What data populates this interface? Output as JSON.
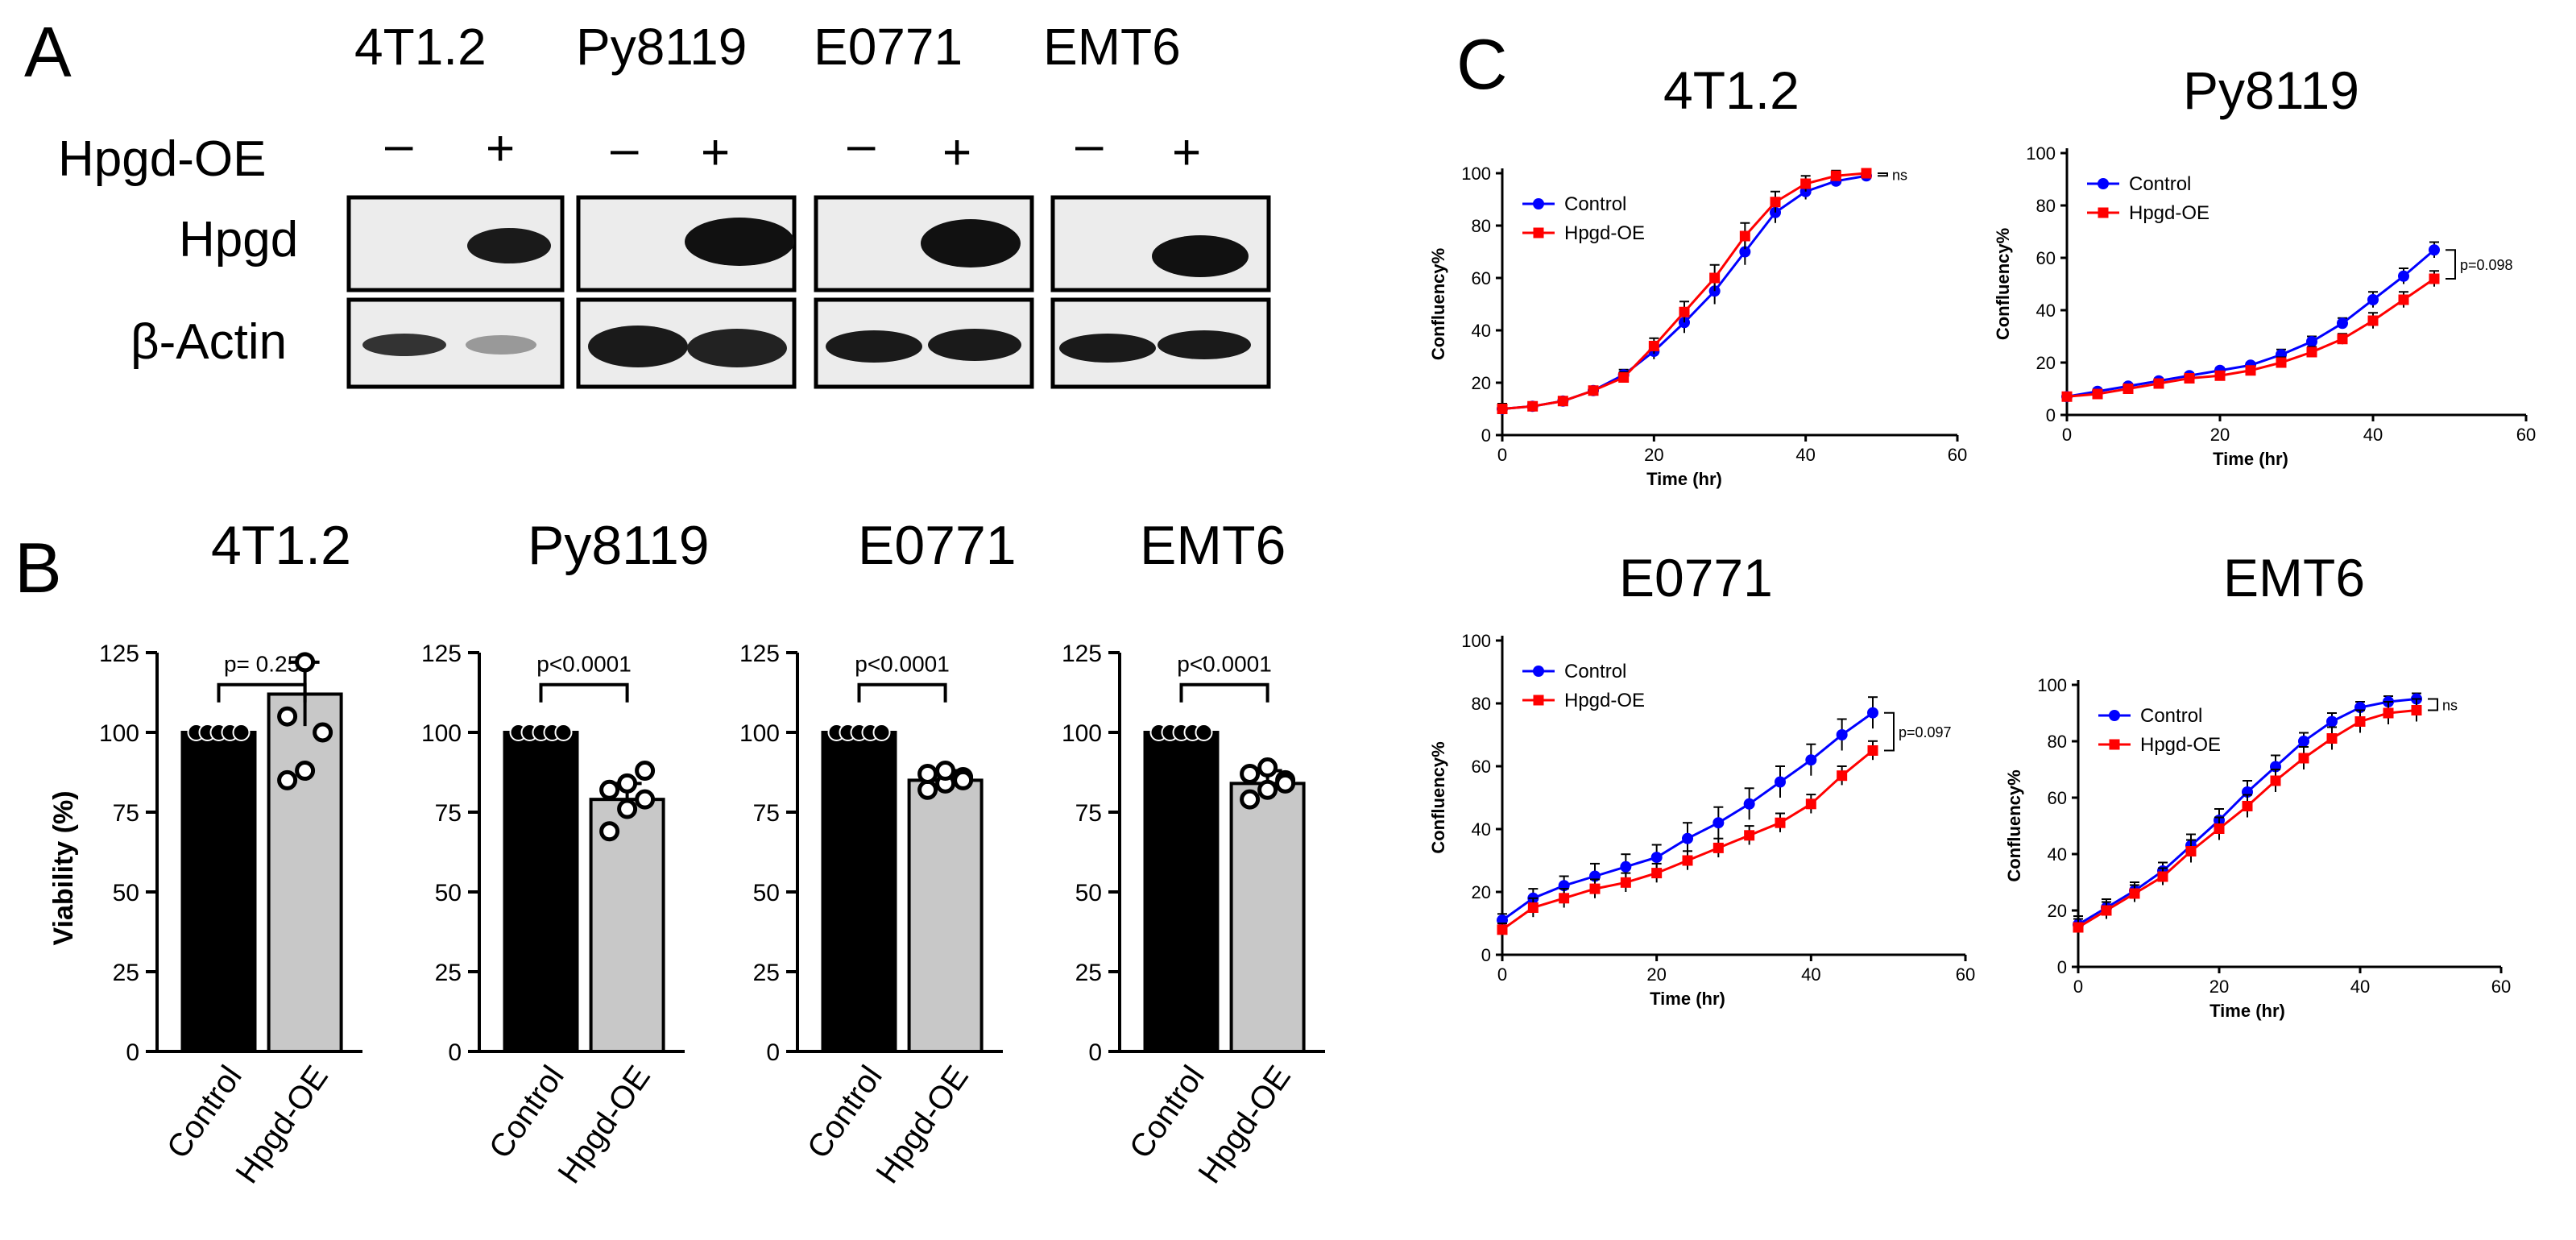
{
  "panels": {
    "A": {
      "letter": "A",
      "cell_lines": [
        "4T1.2",
        "Py8119",
        "E0771",
        "EMT6"
      ],
      "condition_label": "Hpgd-OE",
      "signs": [
        "–",
        "+"
      ],
      "rows": [
        "Hpgd",
        "β-Actin"
      ]
    },
    "B": {
      "letter": "B"
    },
    "C": {
      "letter": "C"
    }
  },
  "chart_data": [
    {
      "panel": "B",
      "type": "bar",
      "title": "4T1.2",
      "categories": [
        "Control",
        "Hpgd-OE"
      ],
      "values": [
        100,
        112
      ],
      "errors": [
        0,
        10
      ],
      "points": [
        [
          100,
          100,
          100,
          100,
          100
        ],
        [
          85,
          88,
          100,
          105,
          122
        ]
      ],
      "ylabel": "Viability (%)",
      "ylim": [
        0,
        125
      ],
      "yticks": [
        0,
        25,
        50,
        75,
        100,
        125
      ],
      "pvalue": "p= 0.25",
      "colors": [
        "#000000",
        "#c8c8c8"
      ]
    },
    {
      "panel": "B",
      "type": "bar",
      "title": "Py8119",
      "categories": [
        "Control",
        "Hpgd-OE"
      ],
      "values": [
        100,
        79
      ],
      "errors": [
        0,
        5
      ],
      "points": [
        [
          100,
          100,
          100,
          100,
          100
        ],
        [
          69,
          76,
          79,
          82,
          84,
          88
        ]
      ],
      "ylabel": "",
      "ylim": [
        0,
        125
      ],
      "yticks": [
        0,
        25,
        50,
        75,
        100,
        125
      ],
      "pvalue": "p<0.0001",
      "colors": [
        "#000000",
        "#c8c8c8"
      ]
    },
    {
      "panel": "B",
      "type": "bar",
      "title": "E0771",
      "categories": [
        "Control",
        "Hpgd-OE"
      ],
      "values": [
        100,
        85
      ],
      "errors": [
        0,
        3
      ],
      "points": [
        [
          100,
          100,
          100,
          100,
          100
        ],
        [
          82,
          84,
          86,
          87,
          88,
          85
        ]
      ],
      "ylabel": "",
      "ylim": [
        0,
        125
      ],
      "yticks": [
        0,
        25,
        50,
        75,
        100,
        125
      ],
      "pvalue": "p<0.0001",
      "colors": [
        "#000000",
        "#c8c8c8"
      ]
    },
    {
      "panel": "B",
      "type": "bar",
      "title": "EMT6",
      "categories": [
        "Control",
        "Hpgd-OE"
      ],
      "values": [
        100,
        84
      ],
      "errors": [
        0,
        4
      ],
      "points": [
        [
          100,
          100,
          100,
          100,
          100
        ],
        [
          79,
          82,
          85,
          87,
          89,
          84
        ]
      ],
      "ylabel": "",
      "ylim": [
        0,
        125
      ],
      "yticks": [
        0,
        25,
        50,
        75,
        100,
        125
      ],
      "pvalue": "p<0.0001",
      "colors": [
        "#000000",
        "#c8c8c8"
      ]
    },
    {
      "panel": "C",
      "type": "line",
      "title": "4T1.2",
      "x": [
        0,
        4,
        8,
        12,
        16,
        20,
        24,
        28,
        32,
        36,
        40,
        44,
        48
      ],
      "series": [
        {
          "name": "Control",
          "color": "#0000ff",
          "values": [
            10,
            11,
            13,
            17,
            23,
            32,
            43,
            55,
            70,
            85,
            93,
            97,
            99
          ],
          "errors": [
            2,
            1,
            1,
            1,
            2,
            3,
            4,
            5,
            5,
            4,
            3,
            2,
            1
          ]
        },
        {
          "name": "Hpgd-OE",
          "color": "#ff0000",
          "values": [
            10,
            11,
            13,
            17,
            22,
            34,
            47,
            60,
            76,
            89,
            96,
            99,
            100
          ],
          "errors": [
            2,
            1,
            1,
            1,
            2,
            3,
            4,
            5,
            5,
            4,
            3,
            2,
            1
          ]
        }
      ],
      "xlabel": "Time (hr)",
      "ylabel": "Confluency%",
      "xlim": [
        0,
        60
      ],
      "ylim": [
        0,
        100
      ],
      "xticks": [
        0,
        20,
        40,
        60
      ],
      "yticks": [
        0,
        20,
        40,
        60,
        80,
        100
      ],
      "annotation": "ns"
    },
    {
      "panel": "C",
      "type": "line",
      "title": "Py8119",
      "x": [
        0,
        4,
        8,
        12,
        16,
        20,
        24,
        28,
        32,
        36,
        40,
        44,
        48
      ],
      "series": [
        {
          "name": "Control",
          "color": "#0000ff",
          "values": [
            7,
            9,
            11,
            13,
            15,
            17,
            19,
            23,
            28,
            35,
            44,
            53,
            63
          ],
          "errors": [
            1,
            1,
            1,
            1,
            1,
            1,
            1,
            2,
            2,
            2,
            3,
            3,
            3
          ]
        },
        {
          "name": "Hpgd-OE",
          "color": "#ff0000",
          "values": [
            7,
            8,
            10,
            12,
            14,
            15,
            17,
            20,
            24,
            29,
            36,
            44,
            52
          ],
          "errors": [
            1,
            1,
            1,
            1,
            1,
            1,
            1,
            2,
            2,
            2,
            3,
            3,
            3
          ]
        }
      ],
      "xlabel": "Time (hr)",
      "ylabel": "Confluency%",
      "xlim": [
        0,
        60
      ],
      "ylim": [
        0,
        100
      ],
      "xticks": [
        0,
        20,
        40,
        60
      ],
      "yticks": [
        0,
        20,
        40,
        60,
        80,
        100
      ],
      "annotation": "p=0.098"
    },
    {
      "panel": "C",
      "type": "line",
      "title": "E0771",
      "x": [
        0,
        4,
        8,
        12,
        16,
        20,
        24,
        28,
        32,
        36,
        40,
        44,
        48
      ],
      "series": [
        {
          "name": "Control",
          "color": "#0000ff",
          "values": [
            11,
            18,
            22,
            25,
            28,
            31,
            37,
            42,
            48,
            55,
            62,
            70,
            77
          ],
          "errors": [
            2,
            3,
            3,
            4,
            4,
            4,
            5,
            5,
            5,
            5,
            5,
            5,
            5
          ]
        },
        {
          "name": "Hpgd-OE",
          "color": "#ff0000",
          "values": [
            8,
            15,
            18,
            21,
            23,
            26,
            30,
            34,
            38,
            42,
            48,
            57,
            65
          ],
          "errors": [
            2,
            3,
            3,
            3,
            3,
            3,
            3,
            3,
            3,
            3,
            3,
            3,
            3
          ]
        }
      ],
      "xlabel": "Time (hr)",
      "ylabel": "Confluency%",
      "xlim": [
        0,
        60
      ],
      "ylim": [
        0,
        100
      ],
      "xticks": [
        0,
        20,
        40,
        60
      ],
      "yticks": [
        0,
        20,
        40,
        60,
        80,
        100
      ],
      "annotation": "p=0.097"
    },
    {
      "panel": "C",
      "type": "line",
      "title": "EMT6",
      "x": [
        0,
        4,
        8,
        12,
        16,
        20,
        24,
        28,
        32,
        36,
        40,
        44,
        48
      ],
      "series": [
        {
          "name": "Control",
          "color": "#0000ff",
          "values": [
            15,
            21,
            27,
            34,
            43,
            52,
            62,
            71,
            80,
            87,
            92,
            94,
            95
          ],
          "errors": [
            3,
            3,
            3,
            3,
            4,
            4,
            4,
            4,
            3,
            3,
            2,
            2,
            2
          ]
        },
        {
          "name": "Hpgd-OE",
          "color": "#ff0000",
          "values": [
            14,
            20,
            26,
            32,
            41,
            49,
            57,
            66,
            74,
            81,
            87,
            90,
            91
          ],
          "errors": [
            3,
            3,
            3,
            3,
            4,
            4,
            4,
            4,
            4,
            4,
            4,
            4,
            4
          ]
        }
      ],
      "xlabel": "Time (hr)",
      "ylabel": "Confluency%",
      "xlim": [
        0,
        60
      ],
      "ylim": [
        0,
        100
      ],
      "xticks": [
        0,
        20,
        40,
        60
      ],
      "yticks": [
        0,
        20,
        40,
        60,
        80,
        100
      ],
      "annotation": "ns"
    }
  ]
}
